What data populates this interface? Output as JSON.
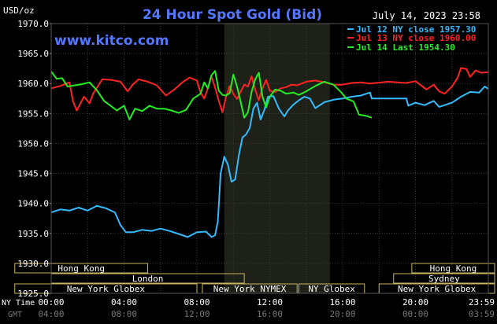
{
  "chart_data": {
    "type": "line",
    "title": "24 Hour Spot Gold (Bid)",
    "unit_label": "USD/oz",
    "date_label": "July 14, 2023 23:58",
    "watermark": "www.kitco.com",
    "y_ticks": [
      "1970.0",
      "1965.0",
      "1960.0",
      "1955.0",
      "1950.0",
      "1945.0",
      "1940.0",
      "1935.0",
      "1930.0",
      "1925.0"
    ],
    "ylim": [
      1925,
      1970
    ],
    "xlim": [
      0,
      24
    ],
    "grid": true,
    "legend_position": "top-right",
    "x_axis_top": {
      "label": "NY Time",
      "ticks": [
        {
          "t": 0,
          "label": "00:00"
        },
        {
          "t": 4,
          "label": "04:00"
        },
        {
          "t": 8,
          "label": "08:00"
        },
        {
          "t": 12,
          "label": "12:00"
        },
        {
          "t": 16,
          "label": "16:00"
        },
        {
          "t": 20,
          "label": "20:00"
        },
        {
          "t": 23.98,
          "label": "23:59"
        }
      ]
    },
    "x_axis_bottom": {
      "label": "GMT",
      "ticks": [
        {
          "t": 0,
          "label": "04:00"
        },
        {
          "t": 4,
          "label": "08:00"
        },
        {
          "t": 8,
          "label": "12:00"
        },
        {
          "t": 12,
          "label": "16:00"
        },
        {
          "t": 16,
          "label": "20:00"
        },
        {
          "t": 20,
          "label": "00:00"
        },
        {
          "t": 23.98,
          "label": "03:59"
        }
      ]
    },
    "highlight_window": [
      9.5,
      15.3
    ],
    "sessions": [
      {
        "label": "Hong Kong",
        "start": -2,
        "end": 5.3,
        "row": 0
      },
      {
        "label": "Hong Kong",
        "start": 19.8,
        "end": 26,
        "row": 0
      },
      {
        "label": "London",
        "start": 0,
        "end": 10.6,
        "row": 1
      },
      {
        "label": "Sydney",
        "start": 18.8,
        "end": 26,
        "row": 1
      },
      {
        "label": "New York Globex",
        "start": -2,
        "end": 8,
        "row": 2
      },
      {
        "label": "New York NYMEX",
        "start": 8.3,
        "end": 13.5,
        "row": 2
      },
      {
        "label": "NY Globex",
        "start": 13.6,
        "end": 17.2,
        "row": 2
      },
      {
        "label": "New York Globex",
        "start": 18,
        "end": 26,
        "row": 2
      }
    ],
    "series": [
      {
        "name": "Jul 12 NY close 1957.30",
        "color": "#33bbff",
        "points": [
          [
            0,
            1938.5
          ],
          [
            0.5,
            1939
          ],
          [
            1,
            1938.8
          ],
          [
            1.5,
            1939.3
          ],
          [
            2,
            1938.8
          ],
          [
            2.5,
            1939.6
          ],
          [
            3,
            1939.2
          ],
          [
            3.5,
            1938.5
          ],
          [
            3.8,
            1936.4
          ],
          [
            4.1,
            1935.2
          ],
          [
            4.5,
            1935.2
          ],
          [
            5,
            1935.6
          ],
          [
            5.5,
            1935.4
          ],
          [
            6,
            1935.8
          ],
          [
            6.5,
            1935.4
          ],
          [
            7,
            1934.9
          ],
          [
            7.5,
            1934.4
          ],
          [
            8,
            1935.2
          ],
          [
            8.5,
            1935.3
          ],
          [
            8.8,
            1934.4
          ],
          [
            9,
            1934.7
          ],
          [
            9.15,
            1937
          ],
          [
            9.3,
            1945
          ],
          [
            9.5,
            1947.8
          ],
          [
            9.7,
            1946.5
          ],
          [
            9.9,
            1943.6
          ],
          [
            10.1,
            1944
          ],
          [
            10.3,
            1948
          ],
          [
            10.5,
            1951
          ],
          [
            10.7,
            1951.5
          ],
          [
            10.9,
            1952.6
          ],
          [
            11.1,
            1955.8
          ],
          [
            11.3,
            1956.8
          ],
          [
            11.5,
            1954
          ],
          [
            11.7,
            1955.6
          ],
          [
            11.9,
            1957.8
          ],
          [
            12.2,
            1957.9
          ],
          [
            12.5,
            1955.8
          ],
          [
            12.8,
            1954.5
          ],
          [
            13,
            1955.5
          ],
          [
            13.3,
            1956.5
          ],
          [
            13.6,
            1957.2
          ],
          [
            13.9,
            1957.8
          ],
          [
            14.2,
            1957.5
          ],
          [
            14.5,
            1955.9
          ],
          [
            15,
            1956.9
          ],
          [
            15.5,
            1957.3
          ],
          [
            16,
            1957.5
          ],
          [
            16.5,
            1957.8
          ],
          [
            17,
            1958
          ],
          [
            17.5,
            1958.5
          ],
          [
            17.6,
            1957.5
          ],
          [
            19.5,
            1957.5
          ],
          [
            19.6,
            1956.3
          ],
          [
            20,
            1956.8
          ],
          [
            20.5,
            1956.4
          ],
          [
            21,
            1957.1
          ],
          [
            21.3,
            1956.1
          ],
          [
            21.6,
            1956.4
          ],
          [
            22,
            1956.8
          ],
          [
            22.5,
            1957.8
          ],
          [
            23,
            1958.6
          ],
          [
            23.5,
            1958.5
          ],
          [
            23.8,
            1959.5
          ],
          [
            24,
            1959.1
          ]
        ]
      },
      {
        "name": "Jul 13 NY close 1960.00",
        "color": "#ff2222",
        "points": [
          [
            0,
            1959.2
          ],
          [
            0.5,
            1959.6
          ],
          [
            1,
            1960.2
          ],
          [
            1.2,
            1957
          ],
          [
            1.4,
            1955.5
          ],
          [
            1.8,
            1957.8
          ],
          [
            2.1,
            1956.7
          ],
          [
            2.3,
            1958.3
          ],
          [
            2.8,
            1960.7
          ],
          [
            3.3,
            1960.6
          ],
          [
            3.8,
            1960.3
          ],
          [
            4.2,
            1958.7
          ],
          [
            4.5,
            1959.9
          ],
          [
            4.8,
            1960.7
          ],
          [
            5.3,
            1960.3
          ],
          [
            5.8,
            1959.7
          ],
          [
            6.3,
            1958
          ],
          [
            6.8,
            1959.1
          ],
          [
            7.2,
            1960.2
          ],
          [
            7.6,
            1961
          ],
          [
            8,
            1960.5
          ],
          [
            8.2,
            1958.5
          ],
          [
            8.4,
            1957.5
          ],
          [
            8.6,
            1959.2
          ],
          [
            8.8,
            1961.2
          ],
          [
            9,
            1959.3
          ],
          [
            9.2,
            1957.1
          ],
          [
            9.4,
            1955.2
          ],
          [
            9.6,
            1957.8
          ],
          [
            9.8,
            1959.6
          ],
          [
            10,
            1958.3
          ],
          [
            10.2,
            1957.4
          ],
          [
            10.4,
            1958.6
          ],
          [
            10.6,
            1959.8
          ],
          [
            10.8,
            1959.5
          ],
          [
            11,
            1961.2
          ],
          [
            11.2,
            1959
          ],
          [
            11.4,
            1957.2
          ],
          [
            11.6,
            1959.2
          ],
          [
            11.8,
            1960.6
          ],
          [
            12,
            1958.8
          ],
          [
            12.3,
            1958.6
          ],
          [
            12.6,
            1959.2
          ],
          [
            12.9,
            1959.4
          ],
          [
            13.2,
            1959.8
          ],
          [
            13.5,
            1959.7
          ],
          [
            14,
            1960.3
          ],
          [
            14.5,
            1960.5
          ],
          [
            15,
            1960.2
          ],
          [
            15.5,
            1959.8
          ],
          [
            16,
            1959.8
          ],
          [
            16.5,
            1960.1
          ],
          [
            17,
            1960.2
          ],
          [
            17.5,
            1960
          ],
          [
            18.5,
            1960.3
          ],
          [
            19.5,
            1960.1
          ],
          [
            20,
            1960.4
          ],
          [
            20.3,
            1959.7
          ],
          [
            20.6,
            1959
          ],
          [
            21,
            1959.8
          ],
          [
            21.3,
            1958.7
          ],
          [
            21.6,
            1958.3
          ],
          [
            22,
            1959.5
          ],
          [
            22.3,
            1960.9
          ],
          [
            22.5,
            1962.6
          ],
          [
            22.8,
            1962.4
          ],
          [
            23,
            1961.1
          ],
          [
            23.3,
            1962.2
          ],
          [
            23.6,
            1961.8
          ],
          [
            24,
            1961.9
          ]
        ]
      },
      {
        "name": "Jul 14 Last 1954.30",
        "color": "#22ee22",
        "points": [
          [
            0,
            1962
          ],
          [
            0.3,
            1960.8
          ],
          [
            0.6,
            1960.9
          ],
          [
            0.9,
            1959.5
          ],
          [
            1.3,
            1959.7
          ],
          [
            1.7,
            1959.9
          ],
          [
            2.1,
            1960.2
          ],
          [
            2.5,
            1958.9
          ],
          [
            2.9,
            1957.1
          ],
          [
            3.3,
            1956.2
          ],
          [
            3.6,
            1955.5
          ],
          [
            4.0,
            1956.3
          ],
          [
            4.3,
            1954
          ],
          [
            4.6,
            1955.8
          ],
          [
            5.0,
            1955.4
          ],
          [
            5.4,
            1956.3
          ],
          [
            5.8,
            1955.8
          ],
          [
            6.2,
            1955.8
          ],
          [
            6.6,
            1955.5
          ],
          [
            7.0,
            1955.1
          ],
          [
            7.4,
            1955.6
          ],
          [
            7.8,
            1957.5
          ],
          [
            8.2,
            1958.3
          ],
          [
            8.4,
            1960.2
          ],
          [
            8.6,
            1959.2
          ],
          [
            8.8,
            1961.4
          ],
          [
            9.0,
            1962.1
          ],
          [
            9.2,
            1958.8
          ],
          [
            9.4,
            1958.1
          ],
          [
            9.6,
            1958
          ],
          [
            9.8,
            1958.4
          ],
          [
            10.0,
            1961.5
          ],
          [
            10.2,
            1959.5
          ],
          [
            10.4,
            1957
          ],
          [
            10.6,
            1954.3
          ],
          [
            10.8,
            1955.2
          ],
          [
            11.0,
            1958.6
          ],
          [
            11.2,
            1960.7
          ],
          [
            11.4,
            1961.8
          ],
          [
            11.6,
            1957.8
          ],
          [
            11.8,
            1956
          ],
          [
            12.0,
            1957.8
          ],
          [
            12.3,
            1959
          ],
          [
            12.6,
            1958.8
          ],
          [
            12.9,
            1958.3
          ],
          [
            13.3,
            1958.5
          ],
          [
            13.6,
            1958.1
          ],
          [
            14.0,
            1958.7
          ],
          [
            14.5,
            1959.6
          ],
          [
            15.0,
            1960.3
          ],
          [
            15.5,
            1959.8
          ],
          [
            15.9,
            1958.6
          ],
          [
            16.2,
            1957.5
          ],
          [
            16.6,
            1957
          ],
          [
            16.9,
            1954.8
          ],
          [
            17.3,
            1954.6
          ],
          [
            17.6,
            1954.3
          ]
        ]
      }
    ]
  }
}
